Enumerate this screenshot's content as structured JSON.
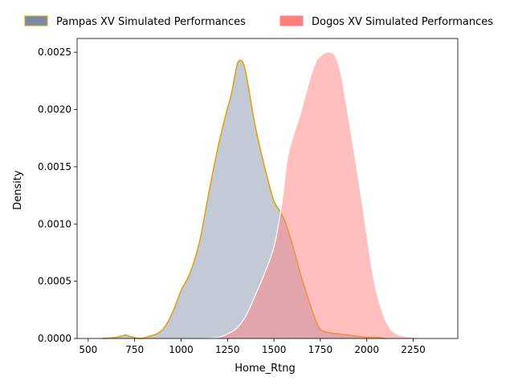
{
  "chart_data": {
    "type": "area",
    "xlabel": "Home_Rtng",
    "ylabel": "Density",
    "xlim": [
      440,
      2490
    ],
    "ylim": [
      0,
      0.00262
    ],
    "x_ticks": [
      500,
      750,
      1000,
      1250,
      1500,
      1750,
      2000,
      2250
    ],
    "x_tick_labels": [
      "500",
      "750",
      "1000",
      "1250",
      "1500",
      "1750",
      "2000",
      "2250"
    ],
    "y_ticks": [
      0,
      0.0005,
      0.001,
      0.0015,
      0.002,
      0.0025
    ],
    "y_tick_labels": [
      "0.0000",
      "0.0005",
      "0.0010",
      "0.0015",
      "0.0020",
      "0.0025"
    ],
    "grid": false,
    "legend_position": "top",
    "series": [
      {
        "name": "Pampas XV Simulated Performances",
        "fill_color": "#7a8aa3",
        "line_color": "#e3a008",
        "x": [
          575,
          650,
          700,
          720,
          780,
          830,
          880,
          920,
          960,
          1000,
          1050,
          1100,
          1150,
          1200,
          1240,
          1270,
          1300,
          1320,
          1340,
          1360,
          1380,
          1400,
          1430,
          1470,
          1500,
          1530,
          1560,
          1600,
          1640,
          1680,
          1720,
          1750,
          1800,
          1850,
          1900,
          1950,
          2000,
          2050,
          2100
        ],
        "y": [
          0.0,
          1e-05,
          3e-05,
          2e-05,
          0.0,
          2e-05,
          5e-05,
          0.00012,
          0.00025,
          0.00042,
          0.00058,
          0.00085,
          0.00128,
          0.00168,
          0.00195,
          0.00213,
          0.00238,
          0.00243,
          0.00238,
          0.00222,
          0.00203,
          0.00185,
          0.00163,
          0.00137,
          0.0012,
          0.00112,
          0.00102,
          0.00082,
          0.00058,
          0.00037,
          0.00018,
          8e-05,
          5e-05,
          4e-05,
          3e-05,
          2e-05,
          1e-05,
          1e-05,
          0.0
        ]
      },
      {
        "name": "Dogos XV Simulated Performances",
        "fill_color": "#ff7f7f",
        "line_color": "#ffffff",
        "x": [
          1130,
          1200,
          1250,
          1300,
          1350,
          1400,
          1450,
          1500,
          1540,
          1570,
          1600,
          1640,
          1670,
          1700,
          1730,
          1760,
          1780,
          1800,
          1820,
          1840,
          1860,
          1890,
          1920,
          1950,
          1980,
          2010,
          2040,
          2080,
          2120,
          2160,
          2200,
          2250,
          2300,
          2330
        ],
        "y": [
          0.0,
          1e-05,
          4e-05,
          9e-05,
          0.0002,
          0.00038,
          0.00057,
          0.0008,
          0.00115,
          0.00155,
          0.00175,
          0.00195,
          0.00213,
          0.0023,
          0.00243,
          0.00248,
          0.0025,
          0.0025,
          0.00249,
          0.00243,
          0.00232,
          0.00205,
          0.00175,
          0.00145,
          0.00113,
          0.0008,
          0.0005,
          0.00025,
          0.0001,
          4e-05,
          2e-05,
          1e-05,
          0.0,
          0.0
        ]
      }
    ]
  }
}
